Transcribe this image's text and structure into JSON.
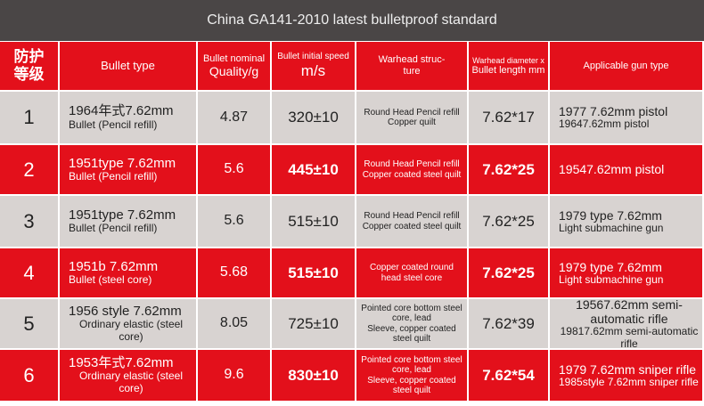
{
  "header": {
    "title": "China GA141-2010 latest bulletproof standard"
  },
  "table": {
    "columns": [
      [
        "防护",
        "等级"
      ],
      [
        "Bullet type"
      ],
      [
        "Bullet nominal",
        "Quality/g"
      ],
      [
        "Bullet initial speed",
        "m/s"
      ],
      [
        "Warhead struc-",
        "ture"
      ],
      [
        "Warhead diameter x",
        "Bullet length mm"
      ],
      [
        "Applicable gun type"
      ]
    ],
    "rows": [
      [
        [
          "1"
        ],
        [
          "1964年式7.62mm",
          "Bullet (Pencil refill)"
        ],
        [
          "4.87"
        ],
        [
          "320±10"
        ],
        [
          "Round Head Pencil refill",
          "Copper quilt"
        ],
        [
          "7.62*17"
        ],
        [
          "1977 7.62mm pistol",
          "19647.62mm pistol"
        ]
      ],
      [
        [
          "2"
        ],
        [
          "1951type 7.62mm",
          "Bullet (Pencil refill)"
        ],
        [
          "5.6"
        ],
        [
          "445±10"
        ],
        [
          "Round Head Pencil refill",
          "Copper coated steel quilt"
        ],
        [
          "7.62*25"
        ],
        [
          "19547.62mm pistol"
        ]
      ],
      [
        [
          "3"
        ],
        [
          "1951type 7.62mm",
          "Bullet (Pencil refill)"
        ],
        [
          "5.6"
        ],
        [
          "515±10"
        ],
        [
          "Round Head Pencil refill",
          "Copper coated steel quilt"
        ],
        [
          "7.62*25"
        ],
        [
          "1979 type 7.62mm",
          "Light submachine gun"
        ]
      ],
      [
        [
          "4"
        ],
        [
          "1951b 7.62mm",
          "Bullet (steel core)"
        ],
        [
          "5.68"
        ],
        [
          "515±10"
        ],
        [
          "Copper coated round head steel core"
        ],
        [
          "7.62*25"
        ],
        [
          "1979 type 7.62mm",
          "Light submachine gun"
        ]
      ],
      [
        [
          "5"
        ],
        [
          "1956 style 7.62mm",
          "Ordinary elastic (steel core)"
        ],
        [
          "8.05"
        ],
        [
          "725±10"
        ],
        [
          "Pointed core bottom steel core, lead",
          "Sleeve, copper coated steel quilt"
        ],
        [
          "7.62*39"
        ],
        [
          "19567.62mm semi-automatic rifle",
          "19817.62mm semi-automatic rifle"
        ]
      ],
      [
        [
          "6"
        ],
        [
          "1953年式7.62mm",
          "Ordinary elastic (steel core)"
        ],
        [
          "9.6"
        ],
        [
          "830±10"
        ],
        [
          "Pointed core bottom steel core, lead",
          "Sleeve, copper coated steel quilt"
        ],
        [
          "7.62*54"
        ],
        [
          "1979 7.62mm sniper rifle",
          "1985style 7.62mm sniper rifle"
        ]
      ]
    ]
  }
}
